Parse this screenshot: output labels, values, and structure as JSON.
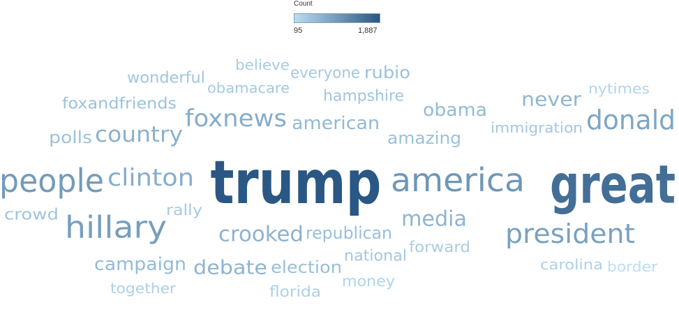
{
  "legend": {
    "title": "Count",
    "min_label": "95",
    "max_label": "1,887",
    "min_value": 95,
    "max_value": 1887,
    "color_low": "#b9ddf1",
    "color_high": "#2a5783"
  },
  "chart_data": {
    "type": "wordcloud",
    "title": "",
    "measure": "Count",
    "words": [
      {
        "word": "trump",
        "count": 1887
      },
      {
        "word": "great",
        "count": 1400
      },
      {
        "word": "america",
        "count": 700
      },
      {
        "word": "people",
        "count": 650
      },
      {
        "word": "hillary",
        "count": 600
      },
      {
        "word": "president",
        "count": 560
      },
      {
        "word": "donald",
        "count": 500
      },
      {
        "word": "clinton",
        "count": 420
      },
      {
        "word": "foxnews",
        "count": 420
      },
      {
        "word": "country",
        "count": 380
      },
      {
        "word": "crooked",
        "count": 360
      },
      {
        "word": "media",
        "count": 340
      },
      {
        "word": "debate",
        "count": 340
      },
      {
        "word": "never",
        "count": 320
      },
      {
        "word": "american",
        "count": 300
      },
      {
        "word": "obama",
        "count": 280
      },
      {
        "word": "campaign",
        "count": 280
      },
      {
        "word": "republican",
        "count": 240
      },
      {
        "word": "election",
        "count": 240
      },
      {
        "word": "amazing",
        "count": 230
      },
      {
        "word": "rubio",
        "count": 230
      },
      {
        "word": "foxandfriends",
        "count": 220
      },
      {
        "word": "polls",
        "count": 220
      },
      {
        "word": "crowd",
        "count": 200
      },
      {
        "word": "wonderful",
        "count": 190
      },
      {
        "word": "hampshire",
        "count": 190
      },
      {
        "word": "immigration",
        "count": 180
      },
      {
        "word": "national",
        "count": 180
      },
      {
        "word": "everyone",
        "count": 170
      },
      {
        "word": "obamacare",
        "count": 170
      },
      {
        "word": "believe",
        "count": 160
      },
      {
        "word": "rally",
        "count": 160
      },
      {
        "word": "forward",
        "count": 150
      },
      {
        "word": "carolina",
        "count": 130
      },
      {
        "word": "together",
        "count": 130
      },
      {
        "word": "florida",
        "count": 130
      },
      {
        "word": "money",
        "count": 120
      },
      {
        "word": "nytimes",
        "count": 110
      },
      {
        "word": "border",
        "count": 95
      }
    ]
  }
}
